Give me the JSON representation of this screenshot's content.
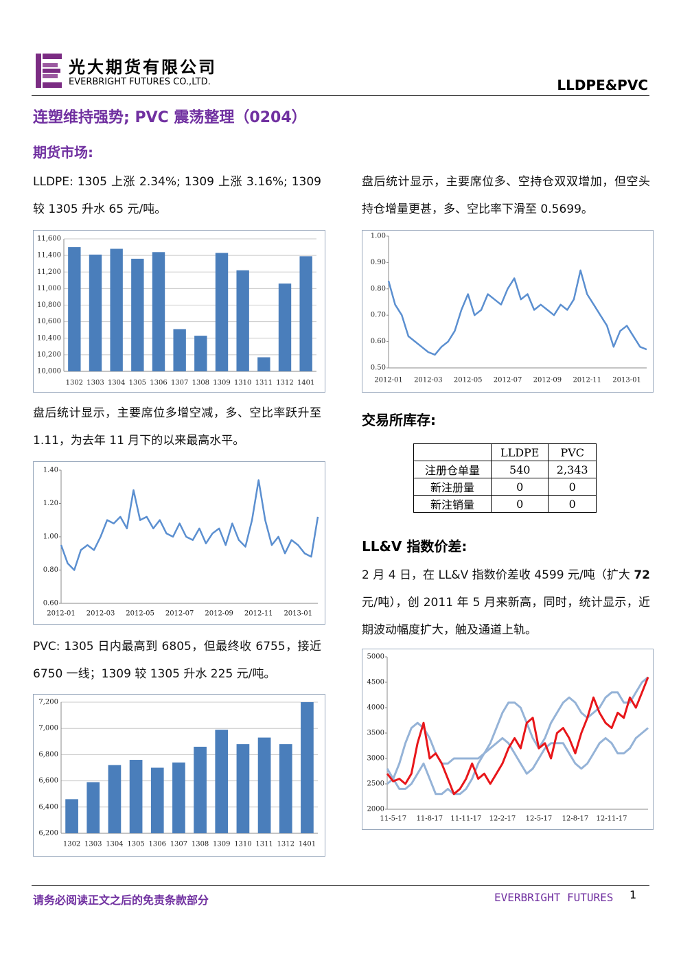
{
  "header": {
    "company": "光大期货有限公司",
    "company_en": "EVERBRIGHT FUTURES CO.,LTD.",
    "topic": "LLDPE&PVC"
  },
  "title": "连塑维持强势; PVC 震荡整理（0204）",
  "section_futures": "期货市场:",
  "p_lldpe": "LLDPE: 1305 上涨 2.34%; 1309 上涨 3.16%;  1309 较 1305 升水 65 元/吨。",
  "p_lldpe_position": "盘后统计显示，主要席位多、空持仓双双增加，但空头持仓增量更甚，多、空比率下滑至 0.5699。",
  "p_pvc_position": "盘后统计显示，主要席位多增空减，多、空比率跃升至 1.11，为去年 11 月下的以来最高水平。",
  "p_pvc": "PVC: 1305 日内最高到 6805，但最终收 6755，接近 6750 一线；1309 较 1305 升水 225 元/吨。",
  "section_inventory": "交易所库存:",
  "table": {
    "header": [
      "LLDPE",
      "PVC"
    ],
    "rows": [
      [
        "注册仓单量",
        "540",
        "2,343"
      ],
      [
        "新注册量",
        "0",
        "0"
      ],
      [
        "新注销量",
        "0",
        "0"
      ]
    ]
  },
  "section_llv": "LL&V 指数价差:",
  "p_llv": [
    "2 月 4 日，在 LL&V 指数价差收 4599 元/吨（扩大 ",
    "72",
    " 元/吨），创 2011 年 5 月来新高，同时，统计显示，近期波动幅度扩大，触及通道上轨。"
  ],
  "footer": {
    "disclaimer": "请务必阅读正文之后的免责条款部分",
    "brand": "EVERBRIGHT FUTURES",
    "page": "1"
  },
  "chart_data": [
    {
      "type": "bar",
      "categories": [
        "1302",
        "1303",
        "1304",
        "1305",
        "1306",
        "1307",
        "1308",
        "1309",
        "1310",
        "1311",
        "1312",
        "1401"
      ],
      "values": [
        11500,
        11410,
        11480,
        11360,
        11440,
        10510,
        10430,
        11430,
        11220,
        10170,
        11060,
        11390
      ],
      "color": "#4a7ebb",
      "ylim": [
        10000,
        11600
      ],
      "yticks": [
        {
          "value": 10000,
          "label": "10,000"
        },
        {
          "value": 10200,
          "label": "10,200"
        },
        {
          "value": 10400,
          "label": "10,400"
        },
        {
          "value": 10600,
          "label": "10,600"
        },
        {
          "value": 10800,
          "label": "10,800"
        },
        {
          "value": 11000,
          "label": "11,000"
        },
        {
          "value": 11200,
          "label": "11,200"
        },
        {
          "value": 11400,
          "label": "11,400"
        },
        {
          "value": 11600,
          "label": "11,600"
        }
      ],
      "grid": true
    },
    {
      "type": "line",
      "categories": [
        "2012-01",
        null,
        null,
        null,
        null,
        null,
        "2012-03",
        null,
        null,
        null,
        null,
        null,
        "2012-05",
        null,
        null,
        null,
        null,
        null,
        "2012-07",
        null,
        null,
        null,
        null,
        null,
        "2012-09",
        null,
        null,
        null,
        null,
        null,
        "2012-11",
        null,
        null,
        null,
        null,
        null,
        "2013-01",
        null,
        null,
        null
      ],
      "series": [
        {
          "color": "#5b8fd0",
          "values": [
            0.83,
            0.74,
            0.7,
            0.62,
            0.6,
            0.58,
            0.56,
            0.55,
            0.58,
            0.6,
            0.64,
            0.72,
            0.78,
            0.7,
            0.72,
            0.78,
            0.76,
            0.74,
            0.8,
            0.84,
            0.76,
            0.78,
            0.72,
            0.74,
            0.72,
            0.7,
            0.74,
            0.72,
            0.76,
            0.87,
            0.78,
            0.74,
            0.7,
            0.66,
            0.58,
            0.64,
            0.66,
            0.62,
            0.58,
            0.57
          ]
        }
      ],
      "ylim": [
        0.5,
        1.0
      ],
      "yticks": [
        {
          "value": 0.5,
          "label": "0.50"
        },
        {
          "value": 0.6,
          "label": "0.60"
        },
        {
          "value": 0.7,
          "label": "0.70"
        },
        {
          "value": 0.8,
          "label": "0.80"
        },
        {
          "value": 0.9,
          "label": "0.90"
        },
        {
          "value": 1.0,
          "label": "1.00"
        }
      ],
      "grid": false
    },
    {
      "type": "line",
      "categories": [
        "2012-01",
        null,
        null,
        null,
        null,
        null,
        "2012-03",
        null,
        null,
        null,
        null,
        null,
        "2012-05",
        null,
        null,
        null,
        null,
        null,
        "2012-07",
        null,
        null,
        null,
        null,
        null,
        "2012-09",
        null,
        null,
        null,
        null,
        null,
        "2012-11",
        null,
        null,
        null,
        null,
        null,
        "2013-01",
        null,
        null,
        null
      ],
      "series": [
        {
          "color": "#5b8fd0",
          "values": [
            0.95,
            0.84,
            0.8,
            0.92,
            0.95,
            0.92,
            1.0,
            1.1,
            1.08,
            1.12,
            1.05,
            1.28,
            1.1,
            1.12,
            1.05,
            1.1,
            1.02,
            1.0,
            1.08,
            1.0,
            0.98,
            1.05,
            0.96,
            1.02,
            1.05,
            0.95,
            1.08,
            0.98,
            0.94,
            1.1,
            1.34,
            1.1,
            0.95,
            1.0,
            0.9,
            0.98,
            0.95,
            0.9,
            0.88,
            1.12
          ]
        }
      ],
      "ylim": [
        0.6,
        1.4
      ],
      "yticks": [
        {
          "value": 0.6,
          "label": "0.60"
        },
        {
          "value": 0.8,
          "label": "0.80"
        },
        {
          "value": 1.0,
          "label": "1.00"
        },
        {
          "value": 1.2,
          "label": "1.20"
        },
        {
          "value": 1.4,
          "label": "1.40"
        }
      ],
      "grid": false
    },
    {
      "type": "bar",
      "categories": [
        "1302",
        "1303",
        "1304",
        "1305",
        "1306",
        "1307",
        "1308",
        "1309",
        "1310",
        "1311",
        "1312",
        "1401"
      ],
      "values": [
        6460,
        6590,
        6720,
        6760,
        6700,
        6740,
        6860,
        6990,
        6880,
        6930,
        6880,
        7200
      ],
      "color": "#4a7ebb",
      "ylim": [
        6200,
        7200
      ],
      "yticks": [
        {
          "value": 6200,
          "label": "6,200"
        },
        {
          "value": 6400,
          "label": "6,400"
        },
        {
          "value": 6600,
          "label": "6,600"
        },
        {
          "value": 6800,
          "label": "6,800"
        },
        {
          "value": 7000,
          "label": "7,000"
        },
        {
          "value": 7200,
          "label": "7,200"
        }
      ],
      "grid": true
    },
    {
      "type": "line",
      "categories": [
        null,
        "11-5-17",
        null,
        null,
        null,
        null,
        null,
        "11-8-17",
        null,
        null,
        null,
        null,
        null,
        "11-11-17",
        null,
        null,
        null,
        null,
        null,
        "12-2-17",
        null,
        null,
        null,
        null,
        null,
        "12-5-17",
        null,
        null,
        null,
        null,
        null,
        "12-8-17",
        null,
        null,
        null,
        null,
        null,
        "12-11-17",
        null,
        null,
        null,
        null,
        null,
        null
      ],
      "series": [
        {
          "color": "#95b3d7",
          "values": [
            2500,
            2600,
            2900,
            3300,
            3600,
            3700,
            3600,
            3400,
            3100,
            2900,
            2900,
            3000,
            3000,
            3000,
            3000,
            3000,
            3100,
            3300,
            3600,
            3900,
            4100,
            4100,
            4000,
            3700,
            3400,
            3200,
            3400,
            3700,
            3900,
            4100,
            4200,
            4100,
            3900,
            3800,
            3900,
            4000,
            4200,
            4300,
            4300,
            4100,
            4100,
            4300,
            4500,
            4600
          ]
        },
        {
          "color": "#95b3d7",
          "values": [
            2800,
            2600,
            2400,
            2400,
            2500,
            2700,
            2900,
            2600,
            2300,
            2300,
            2400,
            2300,
            2300,
            2400,
            2600,
            2900,
            3100,
            3200,
            3300,
            3400,
            3300,
            3100,
            2900,
            2700,
            2800,
            3000,
            3200,
            3300,
            3300,
            3300,
            3100,
            2900,
            2800,
            2900,
            3100,
            3300,
            3400,
            3300,
            3100,
            3100,
            3200,
            3400,
            3500,
            3600
          ]
        },
        {
          "color": "#e8161a",
          "values": [
            2700,
            2550,
            2600,
            2500,
            2700,
            3300,
            3700,
            3000,
            3100,
            2900,
            2600,
            2300,
            2400,
            2600,
            2900,
            2600,
            2700,
            2500,
            2700,
            2900,
            3200,
            3400,
            3200,
            3700,
            3800,
            3200,
            3300,
            3000,
            3500,
            3600,
            3400,
            3100,
            3500,
            3800,
            4200,
            3900,
            3700,
            3600,
            3900,
            3800,
            4200,
            4000,
            4300,
            4600
          ]
        }
      ],
      "ylim": [
        2000,
        5000
      ],
      "yticks": [
        2000,
        2500,
        3000,
        3500,
        4000,
        4500,
        5000
      ],
      "grid": false
    }
  ]
}
